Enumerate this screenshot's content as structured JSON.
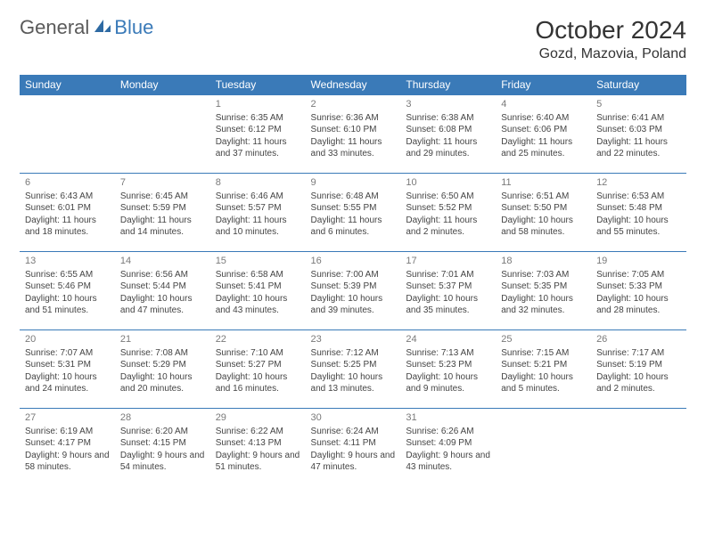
{
  "logo": {
    "general": "General",
    "blue": "Blue"
  },
  "title": "October 2024",
  "location": "Gozd, Mazovia, Poland",
  "colors": {
    "header_bg": "#3a7ab8",
    "header_text": "#ffffff",
    "border": "#3a7ab8",
    "daynum": "#7a7a7a",
    "body_text": "#444444",
    "logo_gray": "#5a5a5a",
    "logo_blue": "#3a7ab8"
  },
  "day_names": [
    "Sunday",
    "Monday",
    "Tuesday",
    "Wednesday",
    "Thursday",
    "Friday",
    "Saturday"
  ],
  "weeks": [
    [
      null,
      null,
      {
        "n": "1",
        "sr": "Sunrise: 6:35 AM",
        "ss": "Sunset: 6:12 PM",
        "dl": "Daylight: 11 hours and 37 minutes."
      },
      {
        "n": "2",
        "sr": "Sunrise: 6:36 AM",
        "ss": "Sunset: 6:10 PM",
        "dl": "Daylight: 11 hours and 33 minutes."
      },
      {
        "n": "3",
        "sr": "Sunrise: 6:38 AM",
        "ss": "Sunset: 6:08 PM",
        "dl": "Daylight: 11 hours and 29 minutes."
      },
      {
        "n": "4",
        "sr": "Sunrise: 6:40 AM",
        "ss": "Sunset: 6:06 PM",
        "dl": "Daylight: 11 hours and 25 minutes."
      },
      {
        "n": "5",
        "sr": "Sunrise: 6:41 AM",
        "ss": "Sunset: 6:03 PM",
        "dl": "Daylight: 11 hours and 22 minutes."
      }
    ],
    [
      {
        "n": "6",
        "sr": "Sunrise: 6:43 AM",
        "ss": "Sunset: 6:01 PM",
        "dl": "Daylight: 11 hours and 18 minutes."
      },
      {
        "n": "7",
        "sr": "Sunrise: 6:45 AM",
        "ss": "Sunset: 5:59 PM",
        "dl": "Daylight: 11 hours and 14 minutes."
      },
      {
        "n": "8",
        "sr": "Sunrise: 6:46 AM",
        "ss": "Sunset: 5:57 PM",
        "dl": "Daylight: 11 hours and 10 minutes."
      },
      {
        "n": "9",
        "sr": "Sunrise: 6:48 AM",
        "ss": "Sunset: 5:55 PM",
        "dl": "Daylight: 11 hours and 6 minutes."
      },
      {
        "n": "10",
        "sr": "Sunrise: 6:50 AM",
        "ss": "Sunset: 5:52 PM",
        "dl": "Daylight: 11 hours and 2 minutes."
      },
      {
        "n": "11",
        "sr": "Sunrise: 6:51 AM",
        "ss": "Sunset: 5:50 PM",
        "dl": "Daylight: 10 hours and 58 minutes."
      },
      {
        "n": "12",
        "sr": "Sunrise: 6:53 AM",
        "ss": "Sunset: 5:48 PM",
        "dl": "Daylight: 10 hours and 55 minutes."
      }
    ],
    [
      {
        "n": "13",
        "sr": "Sunrise: 6:55 AM",
        "ss": "Sunset: 5:46 PM",
        "dl": "Daylight: 10 hours and 51 minutes."
      },
      {
        "n": "14",
        "sr": "Sunrise: 6:56 AM",
        "ss": "Sunset: 5:44 PM",
        "dl": "Daylight: 10 hours and 47 minutes."
      },
      {
        "n": "15",
        "sr": "Sunrise: 6:58 AM",
        "ss": "Sunset: 5:41 PM",
        "dl": "Daylight: 10 hours and 43 minutes."
      },
      {
        "n": "16",
        "sr": "Sunrise: 7:00 AM",
        "ss": "Sunset: 5:39 PM",
        "dl": "Daylight: 10 hours and 39 minutes."
      },
      {
        "n": "17",
        "sr": "Sunrise: 7:01 AM",
        "ss": "Sunset: 5:37 PM",
        "dl": "Daylight: 10 hours and 35 minutes."
      },
      {
        "n": "18",
        "sr": "Sunrise: 7:03 AM",
        "ss": "Sunset: 5:35 PM",
        "dl": "Daylight: 10 hours and 32 minutes."
      },
      {
        "n": "19",
        "sr": "Sunrise: 7:05 AM",
        "ss": "Sunset: 5:33 PM",
        "dl": "Daylight: 10 hours and 28 minutes."
      }
    ],
    [
      {
        "n": "20",
        "sr": "Sunrise: 7:07 AM",
        "ss": "Sunset: 5:31 PM",
        "dl": "Daylight: 10 hours and 24 minutes."
      },
      {
        "n": "21",
        "sr": "Sunrise: 7:08 AM",
        "ss": "Sunset: 5:29 PM",
        "dl": "Daylight: 10 hours and 20 minutes."
      },
      {
        "n": "22",
        "sr": "Sunrise: 7:10 AM",
        "ss": "Sunset: 5:27 PM",
        "dl": "Daylight: 10 hours and 16 minutes."
      },
      {
        "n": "23",
        "sr": "Sunrise: 7:12 AM",
        "ss": "Sunset: 5:25 PM",
        "dl": "Daylight: 10 hours and 13 minutes."
      },
      {
        "n": "24",
        "sr": "Sunrise: 7:13 AM",
        "ss": "Sunset: 5:23 PM",
        "dl": "Daylight: 10 hours and 9 minutes."
      },
      {
        "n": "25",
        "sr": "Sunrise: 7:15 AM",
        "ss": "Sunset: 5:21 PM",
        "dl": "Daylight: 10 hours and 5 minutes."
      },
      {
        "n": "26",
        "sr": "Sunrise: 7:17 AM",
        "ss": "Sunset: 5:19 PM",
        "dl": "Daylight: 10 hours and 2 minutes."
      }
    ],
    [
      {
        "n": "27",
        "sr": "Sunrise: 6:19 AM",
        "ss": "Sunset: 4:17 PM",
        "dl": "Daylight: 9 hours and 58 minutes."
      },
      {
        "n": "28",
        "sr": "Sunrise: 6:20 AM",
        "ss": "Sunset: 4:15 PM",
        "dl": "Daylight: 9 hours and 54 minutes."
      },
      {
        "n": "29",
        "sr": "Sunrise: 6:22 AM",
        "ss": "Sunset: 4:13 PM",
        "dl": "Daylight: 9 hours and 51 minutes."
      },
      {
        "n": "30",
        "sr": "Sunrise: 6:24 AM",
        "ss": "Sunset: 4:11 PM",
        "dl": "Daylight: 9 hours and 47 minutes."
      },
      {
        "n": "31",
        "sr": "Sunrise: 6:26 AM",
        "ss": "Sunset: 4:09 PM",
        "dl": "Daylight: 9 hours and 43 minutes."
      },
      null,
      null
    ]
  ]
}
